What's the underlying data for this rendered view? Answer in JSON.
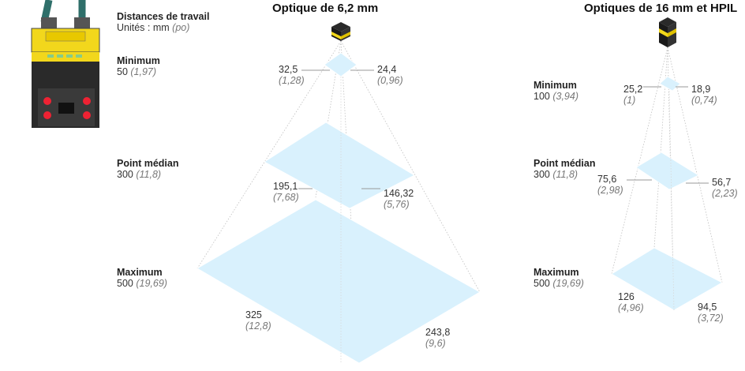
{
  "header": {
    "distances_title": "Distances de travail",
    "units_label": "Unités : mm",
    "units_alt": "(po)"
  },
  "left": {
    "title": "Optique de 6,2 mm",
    "rows": [
      {
        "label": "Minimum",
        "value": "50",
        "alt": "(1,97)"
      },
      {
        "label": "Point médian",
        "value": "300",
        "alt": "(11,8)"
      },
      {
        "label": "Maximum",
        "value": "500",
        "alt": "(19,69)"
      }
    ],
    "dims": [
      {
        "w": "32,5",
        "w_alt": "(1,28)",
        "h": "24,4",
        "h_alt": "(0,96)"
      },
      {
        "w": "195,1",
        "w_alt": "(7,68)",
        "h": "146,32",
        "h_alt": "(5,76)"
      },
      {
        "w": "325",
        "w_alt": "(12,8)",
        "h": "243,8",
        "h_alt": "(9,6)"
      }
    ]
  },
  "right": {
    "title": "Optiques de 16 mm et HPIL",
    "rows": [
      {
        "label": "Minimum",
        "value": "100",
        "alt": "(3,94)"
      },
      {
        "label": "Point médian",
        "value": "300",
        "alt": "(11,8)"
      },
      {
        "label": "Maximum",
        "value": "500",
        "alt": "(19,69)"
      }
    ],
    "dims": [
      {
        "w": "25,2",
        "w_alt": "(1)",
        "h": "18,9",
        "h_alt": "(0,74)"
      },
      {
        "w": "75,6",
        "w_alt": "(2,98)",
        "h": "56,7",
        "h_alt": "(2,23)"
      },
      {
        "w": "126",
        "w_alt": "(4,96)",
        "h": "94,5",
        "h_alt": "(3,72)"
      }
    ]
  },
  "colors": {
    "field": "#d9f1fd",
    "cube_yellow": "#f2d71c",
    "cube_black": "#1a1a1a",
    "guide": "#bfbfbf",
    "leader": "#999999"
  }
}
